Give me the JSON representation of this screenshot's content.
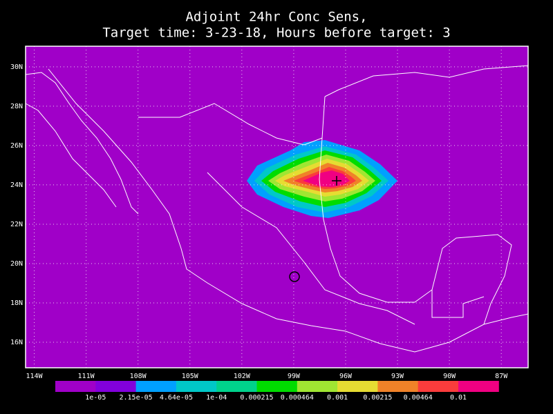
{
  "title": [
    "Adjoint 24hr Conc Sens,",
    "Target time: 3-23-18, Hours before target: 3"
  ],
  "map": {
    "lon_range": [
      -114.5,
      -85.45
    ],
    "lat_range": [
      14.7,
      31.05
    ],
    "background_color": "#a000c8",
    "lat_ticks": [
      {
        "value": 16,
        "label": "16N"
      },
      {
        "value": 18,
        "label": "18N"
      },
      {
        "value": 20,
        "label": "20N"
      },
      {
        "value": 22,
        "label": "22N"
      },
      {
        "value": 24,
        "label": "24N"
      },
      {
        "value": 26,
        "label": "26N"
      },
      {
        "value": 28,
        "label": "28N"
      },
      {
        "value": 30,
        "label": "30N"
      }
    ],
    "lon_ticks": [
      {
        "value": -114,
        "label": "114W"
      },
      {
        "value": -111,
        "label": "111W"
      },
      {
        "value": -108,
        "label": "108W"
      },
      {
        "value": -105,
        "label": "105W"
      },
      {
        "value": -102,
        "label": "102W"
      },
      {
        "value": -99,
        "label": "99W"
      },
      {
        "value": -96,
        "label": "96W"
      },
      {
        "value": -93,
        "label": "93W"
      },
      {
        "value": -90,
        "label": "90W"
      },
      {
        "value": -87,
        "label": "87W"
      }
    ],
    "grid": true
  },
  "colorbar": {
    "colors": [
      "#a000c8",
      "#8200dc",
      "#00a0ff",
      "#00c8c8",
      "#00d28c",
      "#00dc00",
      "#a0e632",
      "#e6dc32",
      "#f08228",
      "#fa3c3c",
      "#f00082"
    ],
    "labels": [
      "1e-05",
      "2.15e-05",
      "4.64e-05",
      "1e-04",
      "0.000215",
      "0.000464",
      "0.001",
      "0.00215",
      "0.00464",
      "0.01"
    ]
  }
}
